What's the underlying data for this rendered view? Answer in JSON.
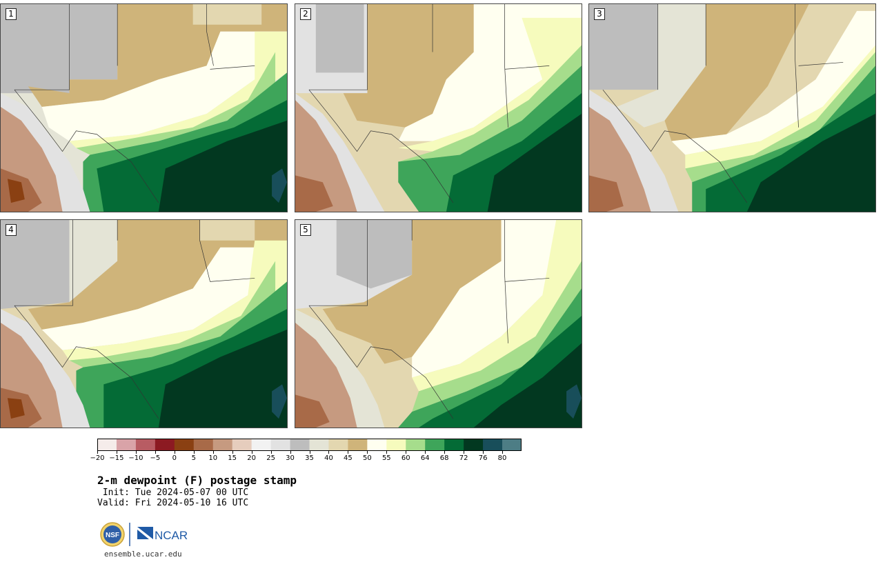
{
  "panels": [
    {
      "label": "1"
    },
    {
      "label": "2"
    },
    {
      "label": "3"
    },
    {
      "label": "4"
    },
    {
      "label": "5"
    }
  ],
  "colorbar": {
    "colors": [
      "#f5ecea",
      "#d9a3a8",
      "#b85c63",
      "#8c1a22",
      "#8a4012",
      "#a86a48",
      "#c69a80",
      "#e6cdbd",
      "#f2f2f2",
      "#e2e2e2",
      "#bdbdbd",
      "#e4e4d6",
      "#e3d7b0",
      "#cfb47a",
      "#fffff0",
      "#f6fbbd",
      "#a6dd8c",
      "#3ea55a",
      "#046b36",
      "#023820",
      "#184e5a",
      "#4d7d85"
    ],
    "ticks": [
      "−20",
      "−15",
      "−10",
      "−5",
      "0",
      "5",
      "10",
      "15",
      "20",
      "25",
      "30",
      "35",
      "40",
      "45",
      "50",
      "55",
      "60",
      "64",
      "68",
      "72",
      "76",
      "80"
    ]
  },
  "title": "2-m dewpoint (F) postage stamp",
  "init": " Init: Tue 2024-05-07 00 UTC",
  "valid": "Valid: Fri 2024-05-10 16 UTC",
  "logos": {
    "nsf_text": "NSF",
    "ncar_text": "NCAR"
  },
  "website": "ensemble.ucar.edu"
}
